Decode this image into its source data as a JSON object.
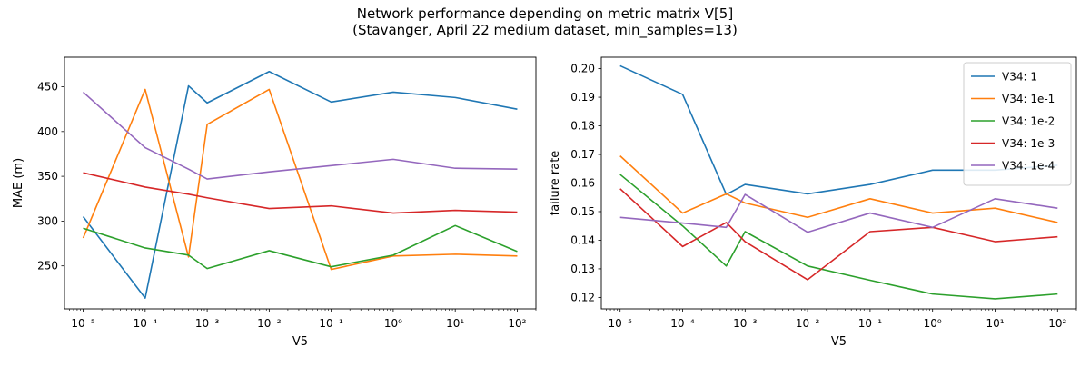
{
  "figure": {
    "suptitle_line1": "Network performance depending on metric matrix V[5]",
    "suptitle_line2": "(Stavanger, April 22 medium dataset, min_samples=13)"
  },
  "colors": {
    "V34: 1": "#1f77b4",
    "V34: 1e-1": "#ff7f0e",
    "V34: 1e-2": "#2ca02c",
    "V34: 1e-3": "#d62728",
    "V34: 1e-4": "#9467bd"
  },
  "chart_data": [
    {
      "type": "line",
      "xscale": "log",
      "xlabel": "V5",
      "ylabel": "MAE (m)",
      "xlim": [
        5e-06,
        200
      ],
      "ylim": [
        202,
        483
      ],
      "xticks": [
        -5,
        -4,
        -3,
        -2,
        -1,
        0,
        1,
        2
      ],
      "yticks": [
        250,
        300,
        350,
        400,
        450
      ],
      "x": [
        1e-05,
        0.0001,
        0.0005,
        0.001,
        0.01,
        0.1,
        1,
        10,
        100
      ],
      "series": [
        {
          "name": "V34: 1",
          "values": [
            305,
            214,
            451,
            432,
            467,
            433,
            444,
            438,
            425
          ]
        },
        {
          "name": "V34: 1e-1",
          "values": [
            281,
            447,
            260,
            408,
            447,
            246,
            261,
            263,
            261
          ]
        },
        {
          "name": "V34: 1e-2",
          "values": [
            292,
            270,
            262,
            247,
            267,
            249,
            262,
            295,
            266
          ]
        },
        {
          "name": "V34: 1e-3",
          "values": [
            354,
            338,
            330,
            326,
            314,
            317,
            309,
            312,
            310
          ]
        },
        {
          "name": "V34: 1e-4",
          "values": [
            444,
            382,
            358,
            347,
            355,
            362,
            369,
            359,
            358
          ]
        }
      ],
      "legend": null
    },
    {
      "type": "line",
      "xscale": "log",
      "xlabel": "V5",
      "ylabel": "failure rate",
      "xlim": [
        5e-06,
        200
      ],
      "ylim": [
        0.116,
        0.204
      ],
      "xticks": [
        -5,
        -4,
        -3,
        -2,
        -1,
        0,
        1,
        2
      ],
      "yticks": [
        0.12,
        0.13,
        0.14,
        0.15,
        0.16,
        0.17,
        0.18,
        0.19,
        0.2
      ],
      "ytick_labels": [
        "0.12",
        "0.13",
        "0.14",
        "0.15",
        "0.16",
        "0.17",
        "0.18",
        "0.19",
        "0.20"
      ],
      "x": [
        1e-05,
        0.0001,
        0.0005,
        0.001,
        0.01,
        0.1,
        1,
        10,
        100
      ],
      "series": [
        {
          "name": "V34: 1",
          "values": [
            0.201,
            0.191,
            0.156,
            0.1595,
            0.1562,
            0.1595,
            0.1645,
            0.1645,
            0.1662
          ]
        },
        {
          "name": "V34: 1e-1",
          "values": [
            0.1695,
            0.1495,
            0.1562,
            0.153,
            0.148,
            0.1545,
            0.1495,
            0.1512,
            0.1462
          ]
        },
        {
          "name": "V34: 1e-2",
          "values": [
            0.163,
            0.145,
            0.131,
            0.143,
            0.131,
            0.126,
            0.1212,
            0.1195,
            0.1212
          ]
        },
        {
          "name": "V34: 1e-3",
          "values": [
            0.158,
            0.1378,
            0.1462,
            0.1395,
            0.1262,
            0.143,
            0.1445,
            0.1395,
            0.1412
          ]
        },
        {
          "name": "V34: 1e-4",
          "values": [
            0.148,
            0.146,
            0.1445,
            0.156,
            0.1428,
            0.1495,
            0.1445,
            0.1545,
            0.1512
          ]
        }
      ],
      "legend": "top-right"
    }
  ]
}
